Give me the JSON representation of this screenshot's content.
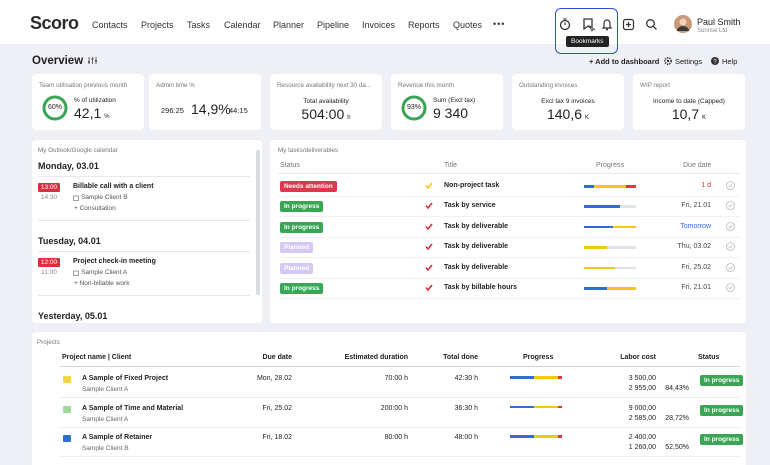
{
  "nav": {
    "logo": "Scoro",
    "items": [
      "Contacts",
      "Projects",
      "Tasks",
      "Calendar",
      "Planner",
      "Pipeline",
      "Invoices",
      "Reports",
      "Quotes"
    ],
    "more": "•••",
    "tooltip": "Bookmarks",
    "user_name": "Paul Smith",
    "user_company": "Sunrise Ltd"
  },
  "toolbar": {
    "title": "Overview",
    "add": "+ Add to dashboard",
    "settings": "Settings",
    "help": "Help"
  },
  "kpis": [
    {
      "title": "Team utilisation previous month",
      "gauge": "60%",
      "label": "% of utilization",
      "value": "42,1",
      "unit": "%"
    },
    {
      "title": "Admin time %",
      "left": "296:25",
      "value": "14,9%",
      "right": "44:15"
    },
    {
      "title": "Resource availability next 30 da...",
      "label": "Total availability",
      "value": "504:00",
      "unit": "h"
    },
    {
      "title": "Revenue this month",
      "gauge": "93%",
      "label": "Sum (Excl tax)",
      "value": "9 340"
    },
    {
      "title": "Outstanding invoices",
      "label": "Excl tax 9 invoices",
      "value": "140,6",
      "unit": "K"
    },
    {
      "title": "WIP report",
      "label": "Income to date (Capped)",
      "value": "10,7",
      "unit": "K"
    }
  ],
  "calendar": {
    "title": "My Outlook/Google calendar",
    "days": [
      {
        "day": "Monday, 03.01",
        "events": [
          {
            "start": "13:00",
            "end": "14:30",
            "title": "Billable call with a client",
            "client": "Sample Client B",
            "type": "+ Consultation"
          }
        ]
      },
      {
        "day": "Tuesday, 04.01",
        "events": [
          {
            "start": "12:00",
            "end": "11:00",
            "title": "Project check-in meeting",
            "client": "Sample Client A",
            "type": "+ Non-billable work"
          }
        ]
      },
      {
        "day": "Yesterday, 05.01",
        "events": []
      }
    ]
  },
  "tasks": {
    "title": "My tasks/deliverables",
    "headers": [
      "Status",
      "Title",
      "Progress",
      "Due date"
    ],
    "rows": [
      {
        "status": "Needs attention",
        "status_color": "#e0364c",
        "title": "Non-project task",
        "due": "1 d",
        "due_color": "#d62d2d"
      },
      {
        "status": "In progress",
        "status_color": "#3aa655",
        "title": "Task by service",
        "due": "Fri, 21.01",
        "due_color": "#444444"
      },
      {
        "status": "In progress",
        "status_color": "#3aa655",
        "title": "Task by deliverable",
        "due": "Tomorrow",
        "due_color": "#2f6fd1"
      },
      {
        "status": "Planned",
        "status_color": "#d6c8f4",
        "title": "Task by deliverable",
        "due": "Thu, 03.02",
        "due_color": "#444444"
      },
      {
        "status": "Planned",
        "status_color": "#d6c8f4",
        "title": "Task by deliverable",
        "due": "Fri, 25.02",
        "due_color": "#444444"
      },
      {
        "status": "In progress",
        "status_color": "#3aa655",
        "title": "Task by billable hours",
        "due": "Fri, 21.01",
        "due_color": "#444444"
      }
    ]
  },
  "projects": {
    "title": "Projects",
    "headers": [
      "Project name | Client",
      "Due date",
      "Estimated duration",
      "Total done",
      "Progress",
      "Labor cost",
      "Status"
    ],
    "rows": [
      {
        "name": "A Sample of Fixed Project",
        "client": "Sample Client A",
        "due": "Mon, 28.02",
        "estimated": "70:00 h",
        "done": "42:30 h",
        "cost": "3 500,00",
        "cost_done": "2 955,00",
        "percent": "84,43%",
        "status": "In progress",
        "icon_color": "#f5d547"
      },
      {
        "name": "A Sample of Time and Material",
        "client": "Sample Client A",
        "due": "Fri, 25.02",
        "estimated": "200:00 h",
        "done": "36:30 h",
        "cost": "9 000,00",
        "cost_done": "2 585,00",
        "percent": "28,72%",
        "status": "In progress",
        "icon_color": "#9fd89a"
      },
      {
        "name": "A Sample of Retainer",
        "client": "Sample Client B",
        "due": "Fri, 18.02",
        "estimated": "80:00 h",
        "done": "48:00 h",
        "cost": "2 400,00",
        "cost_done": "1 260,00",
        "percent": "52,50%",
        "status": "In progress",
        "icon_color": "#2f6fd1"
      }
    ]
  }
}
